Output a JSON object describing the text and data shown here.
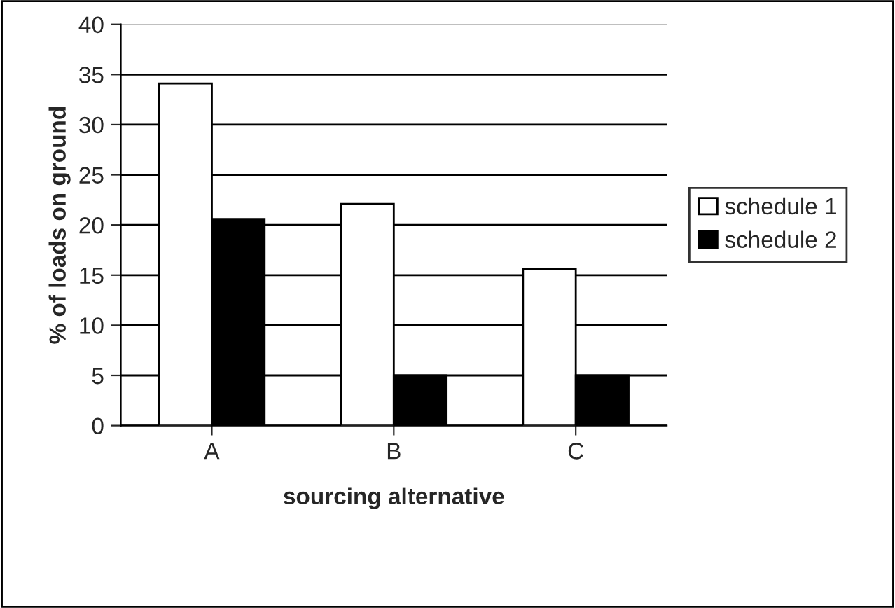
{
  "chart_data": {
    "type": "bar",
    "xlabel": "sourcing alternative",
    "ylabel": "% of loads on ground",
    "categories": [
      "A",
      "B",
      "C"
    ],
    "series": [
      {
        "name": "schedule 1",
        "color": "#ffffff",
        "values": [
          34.1,
          22.1,
          15.6
        ]
      },
      {
        "name": "schedule 2",
        "color": "#000000",
        "values": [
          20.6,
          5,
          5
        ]
      }
    ],
    "ylim": [
      0,
      40
    ],
    "yticks": [
      0,
      5,
      10,
      15,
      20,
      25,
      30,
      35,
      40
    ],
    "grid": "y",
    "legend": "right"
  }
}
